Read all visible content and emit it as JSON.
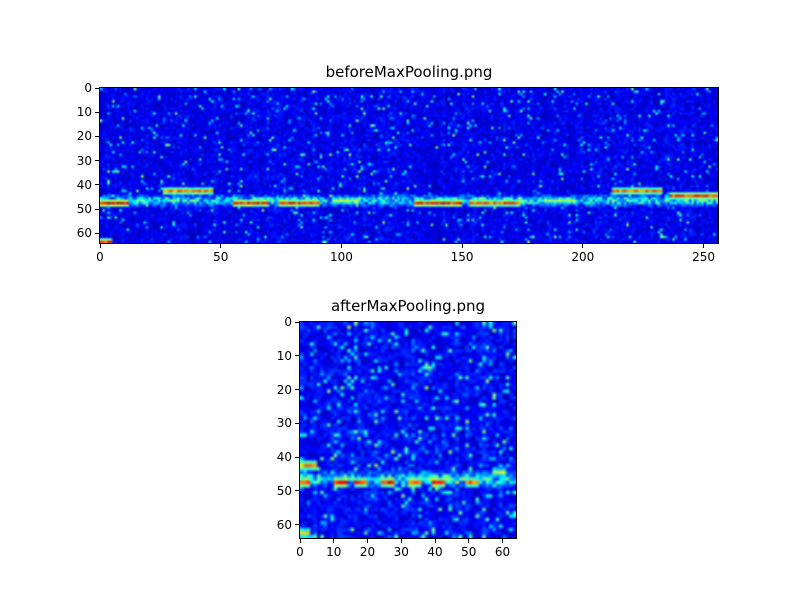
{
  "window": {
    "background": "#ffffff"
  },
  "chart_data": [
    {
      "type": "heatmap",
      "title": "beforeMaxPooling.png",
      "xlabel": "",
      "ylabel": "",
      "x_range": [
        0,
        256
      ],
      "y_range": [
        0,
        64
      ],
      "x_ticks": [
        0,
        50,
        100,
        150,
        200,
        250
      ],
      "y_ticks": [
        0,
        10,
        20,
        30,
        40,
        50,
        60
      ],
      "colormap": "jet",
      "background_color_hex": "#000090",
      "description": "Spectrogram-like 256x64 feature map: dark blue noisy background with a bright cyan horizontal band near rows 40-49 and red/yellow hotspots along it",
      "seed": 7,
      "noise": {
        "base": 0.04,
        "jitter": 0.1,
        "speckle_prob": 0.07,
        "speckle": 0.4
      },
      "band": {
        "rows": [
          40,
          50
        ],
        "row_peak": 46,
        "value": 0.55
      },
      "hotspots": [
        {
          "x0": 0,
          "x1": 11,
          "row": 47,
          "value": 1.0
        },
        {
          "x0": 26,
          "x1": 46,
          "row": 42,
          "value": 0.85
        },
        {
          "x0": 55,
          "x1": 69,
          "row": 47,
          "value": 0.95
        },
        {
          "x0": 74,
          "x1": 90,
          "row": 47,
          "value": 0.92
        },
        {
          "x0": 96,
          "x1": 106,
          "row": 46,
          "value": 0.6
        },
        {
          "x0": 130,
          "x1": 149,
          "row": 47,
          "value": 0.95
        },
        {
          "x0": 153,
          "x1": 173,
          "row": 47,
          "value": 0.88
        },
        {
          "x0": 184,
          "x1": 196,
          "row": 46,
          "value": 0.6
        },
        {
          "x0": 212,
          "x1": 232,
          "row": 42,
          "value": 0.85
        },
        {
          "x0": 236,
          "x1": 255,
          "row": 44,
          "value": 0.92
        },
        {
          "x0": 0,
          "x1": 4,
          "row": 63,
          "value": 0.9
        }
      ]
    },
    {
      "type": "heatmap",
      "title": "afterMaxPooling.png",
      "xlabel": "",
      "ylabel": "",
      "x_range": [
        0,
        64
      ],
      "y_range": [
        0,
        64
      ],
      "x_ticks": [
        0,
        10,
        20,
        30,
        40,
        50,
        60
      ],
      "y_ticks": [
        0,
        10,
        20,
        30,
        40,
        50,
        60
      ],
      "colormap": "jet",
      "background_color_hex": "#000090",
      "description": "Max-pooled 64x64 feature map: same dark blue noisy background, bright band near rows 40-49 with a dotted series of red/yellow hotspots",
      "seed": 13,
      "noise": {
        "base": 0.05,
        "jitter": 0.12,
        "speckle_prob": 0.12,
        "speckle": 0.38
      },
      "band": {
        "rows": [
          40,
          50
        ],
        "row_peak": 46,
        "value": 0.55
      },
      "hotspots": [
        {
          "x0": 0,
          "x1": 4,
          "row": 42,
          "value": 0.8
        },
        {
          "x0": 0,
          "x1": 2,
          "row": 47,
          "value": 0.9
        },
        {
          "x0": 10,
          "x1": 13,
          "row": 47,
          "value": 0.95
        },
        {
          "x0": 16,
          "x1": 19,
          "row": 47,
          "value": 0.9
        },
        {
          "x0": 24,
          "x1": 27,
          "row": 47,
          "value": 0.95
        },
        {
          "x0": 32,
          "x1": 35,
          "row": 47,
          "value": 0.9
        },
        {
          "x0": 39,
          "x1": 42,
          "row": 47,
          "value": 0.95
        },
        {
          "x0": 49,
          "x1": 52,
          "row": 47,
          "value": 0.85
        },
        {
          "x0": 57,
          "x1": 60,
          "row": 44,
          "value": 0.6
        },
        {
          "x0": 0,
          "x1": 2,
          "row": 62,
          "value": 0.7
        }
      ]
    }
  ]
}
